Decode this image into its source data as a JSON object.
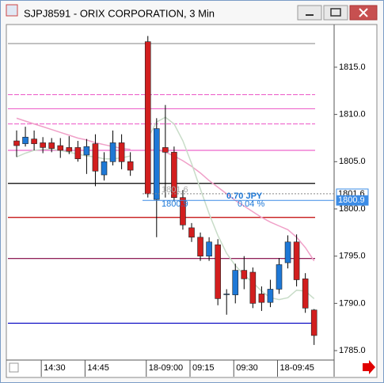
{
  "chart_data": {
    "type": "candlestick",
    "title": "SJPJ8591 - ORIX CORPORATION, 3 Min",
    "categories": [
      null,
      null,
      null,
      "14:30",
      null,
      null,
      null,
      null,
      "14:45",
      null,
      null,
      null,
      null,
      null,
      null,
      "18-09:00",
      null,
      null,
      null,
      null,
      "09:15",
      null,
      null,
      null,
      null,
      "09:30",
      null,
      null,
      null,
      null,
      "18-09:45",
      null,
      null,
      null,
      null
    ],
    "open": [
      1807.2,
      1806.9,
      1807.4,
      1807.0,
      1807.0,
      1806.7,
      1806.5,
      1806.5,
      1805.7,
      1806.9,
      1803.6,
      1805.0,
      1807.0,
      1805.0,
      null,
      1817.7,
      1801.0,
      1806.5,
      1806.0,
      1801.2,
      1798.0,
      1797.0,
      1795.0,
      1796.2,
      1791.0,
      1790.9,
      1793.5,
      1793.3,
      1791.0,
      1790.1,
      1791.5,
      1794.3,
      1796.5,
      1792.6,
      1789.3
    ],
    "high": [
      1808.3,
      1808.7,
      1808.3,
      1807.6,
      1807.5,
      1807.5,
      1807.7,
      1807.2,
      1807.4,
      1807.9,
      1806.0,
      1808.3,
      1807.9,
      1806.0,
      null,
      1818.3,
      1809.6,
      1811.0,
      1806.6,
      1802.0,
      1798.5,
      1797.5,
      1797.0,
      1796.8,
      1791.5,
      1794.2,
      1795.0,
      1793.8,
      1791.8,
      1792.5,
      1794.8,
      1797.2,
      1797.3,
      1793.2,
      1789.4
    ],
    "low": [
      1805.5,
      1806.6,
      1806.2,
      1805.9,
      1806.0,
      1805.4,
      1805.8,
      1805.0,
      1803.7,
      1802.4,
      1803.0,
      1804.6,
      1804.2,
      1803.5,
      null,
      1801.2,
      1797.0,
      1801.2,
      1800.8,
      1797.8,
      1796.5,
      1794.5,
      1794.5,
      1789.8,
      1788.8,
      1790.0,
      1791.5,
      1789.5,
      1789.2,
      1789.6,
      1791.0,
      1793.7,
      1791.8,
      1789.0,
      1785.6
    ],
    "close": [
      1806.7,
      1807.6,
      1806.9,
      1806.5,
      1806.4,
      1806.2,
      1806.1,
      1805.3,
      1806.6,
      1804.0,
      1805.0,
      1807.0,
      1805.0,
      1804.1,
      null,
      1801.6,
      1808.5,
      1806.0,
      1801.2,
      1798.3,
      1797.0,
      1795.0,
      1796.5,
      1790.5,
      1791.0,
      1793.5,
      1792.6,
      1790.0,
      1790.1,
      1791.5,
      1794.1,
      1796.5,
      1792.5,
      1789.5,
      1786.6
    ],
    "up_color": "#1e78d6",
    "down_color": "#d21e1e",
    "lines": [
      {
        "color": "#f0a0c8",
        "values": [
          1809.6,
          1809.3,
          1809.0,
          1808.7,
          1808.4,
          1808.1,
          1807.8,
          1807.5,
          1807.3,
          1807.0,
          1806.8,
          1806.6,
          1806.4,
          1806.3,
          null,
          1806.2,
          1806.3,
          1806.0,
          1805.6,
          1805.1,
          1804.5,
          1803.8,
          1803.0,
          1802.3,
          1801.6,
          1800.9,
          1800.3,
          1799.7,
          1799.1,
          1798.6,
          1798.2,
          1797.8,
          1797.0,
          1795.9,
          1794.5
        ]
      },
      {
        "color": "#c8dcc8",
        "values": [
          1805.5,
          1805.9,
          1806.2,
          1806.3,
          1806.3,
          1806.2,
          1806.0,
          1805.8,
          1805.6,
          1805.5,
          1805.3,
          1805.3,
          1805.4,
          1805.6,
          null,
          1807.5,
          1809.2,
          1809.7,
          1809.0,
          1807.2,
          1804.8,
          1802.1,
          1799.5,
          1797.2,
          1795.3,
          1794.0,
          1793.0,
          1792.2,
          1791.3,
          1790.6,
          1790.4,
          1790.6,
          1791.4,
          1791.3,
          1790.5
        ]
      }
    ],
    "levels": [
      {
        "value": 1817.5,
        "color": "#909090",
        "dash": false
      },
      {
        "value": 1812.1,
        "color": "#ee66cc",
        "dash": true
      },
      {
        "value": 1810.6,
        "color": "#ee66cc",
        "dash": false
      },
      {
        "value": 1809.0,
        "color": "#ee66cc",
        "dash": true
      },
      {
        "value": 1806.2,
        "color": "#ee66cc",
        "dash": false
      },
      {
        "value": 1802.7,
        "color": "#000000",
        "dash": false
      },
      {
        "value": 1799.1,
        "color": "#c00000",
        "dash": false
      },
      {
        "value": 1794.75,
        "color": "#800040",
        "dash": false
      },
      {
        "value": 1787.9,
        "color": "#0000c0",
        "dash": false
      }
    ],
    "price_markers": [
      {
        "value": 1801.6,
        "label": "1801.6",
        "color": "#ffffff"
      },
      {
        "value": 1800.9,
        "label": "1800.9",
        "color": "#3c8ce6"
      }
    ],
    "annotations": [
      "0.70  JPY",
      "0.04  %"
    ],
    "ylim": [
      1784.0,
      1819.35
    ],
    "yticks": [
      {
        "value": 1785,
        "label": "1785.0"
      },
      {
        "value": 1790,
        "label": "1790.0"
      },
      {
        "value": 1795,
        "label": "1795.0"
      },
      {
        "value": 1800,
        "label": "1800.0"
      },
      {
        "value": 1805,
        "label": "1805.0"
      },
      {
        "value": 1810,
        "label": "1810.0"
      },
      {
        "value": 1815,
        "label": "1815.0"
      }
    ]
  }
}
